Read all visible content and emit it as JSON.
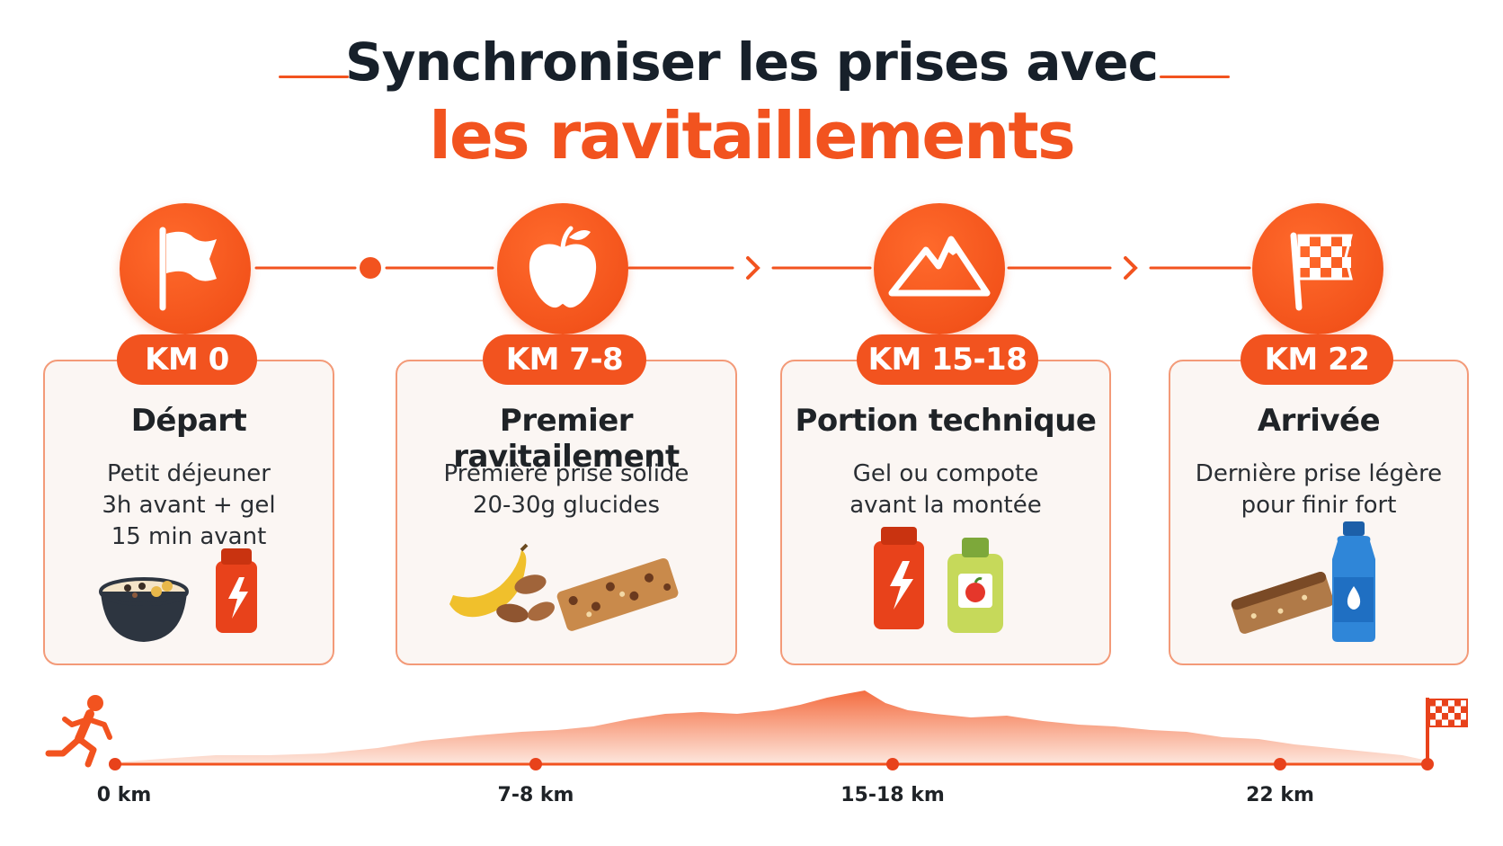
{
  "title": {
    "line1": "Synchroniser les prises avec",
    "line2": "les ravitaillements"
  },
  "colors": {
    "accent": "#f2531f",
    "dark": "#17202a",
    "card_bg": "#fbf6f3",
    "card_border": "#f39a78"
  },
  "stages": [
    {
      "icon": "flag-icon",
      "km": "KM 0",
      "title": "Départ",
      "desc": "Petit déjeuner\n3h avant + gel\n15 min avant"
    },
    {
      "icon": "apple-icon",
      "km": "KM 7-8",
      "title": "Premier ravitailement",
      "desc": "Première prise solide\n20-30g glucides"
    },
    {
      "icon": "mountain-icon",
      "km": "KM 15-18",
      "title": "Portion technique",
      "desc": "Gel ou compote\navant la montée"
    },
    {
      "icon": "checkered-flag-icon",
      "km": "KM 22",
      "title": "Arrivée",
      "desc": "Dernière prise légère\npour finir fort"
    }
  ],
  "profile": {
    "km_labels": [
      "0 km",
      "7-8 km",
      "15-18 km",
      "22 km"
    ]
  }
}
